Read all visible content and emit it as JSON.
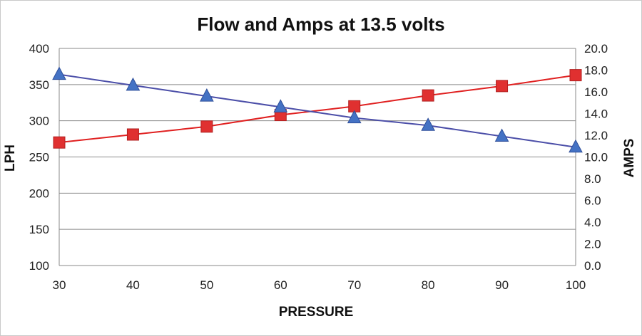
{
  "chart_data": {
    "type": "line",
    "title": "Flow and Amps at 13.5 volts",
    "xlabel": "PRESSURE",
    "ylabel": "LPH",
    "y2label": "AMPS",
    "x": [
      30,
      40,
      50,
      60,
      70,
      80,
      90,
      100
    ],
    "x_ticks": [
      "30",
      "40",
      "50",
      "60",
      "70",
      "80",
      "90",
      "100"
    ],
    "ylim": [
      100,
      400
    ],
    "y_ticks": [
      "100",
      "150",
      "200",
      "250",
      "300",
      "350",
      "400"
    ],
    "y2lim": [
      0,
      20
    ],
    "y2_ticks": [
      "0.0",
      "2.0",
      "4.0",
      "6.0",
      "8.0",
      "10.0",
      "12.0",
      "14.0",
      "16.0",
      "18.0",
      "20.0"
    ],
    "grid": true,
    "legend": "none",
    "series": [
      {
        "axis": "left",
        "marker": "square",
        "color": "#e03030",
        "line_color": "#e02020",
        "values": [
          270,
          281,
          292,
          308,
          320,
          335,
          348,
          363
        ]
      },
      {
        "axis": "right",
        "marker": "triangle",
        "color": "#4472c4",
        "line_color": "#4b4ea8",
        "values": [
          17.6,
          16.6,
          15.6,
          14.6,
          13.6,
          12.9,
          11.9,
          10.9
        ]
      }
    ]
  }
}
